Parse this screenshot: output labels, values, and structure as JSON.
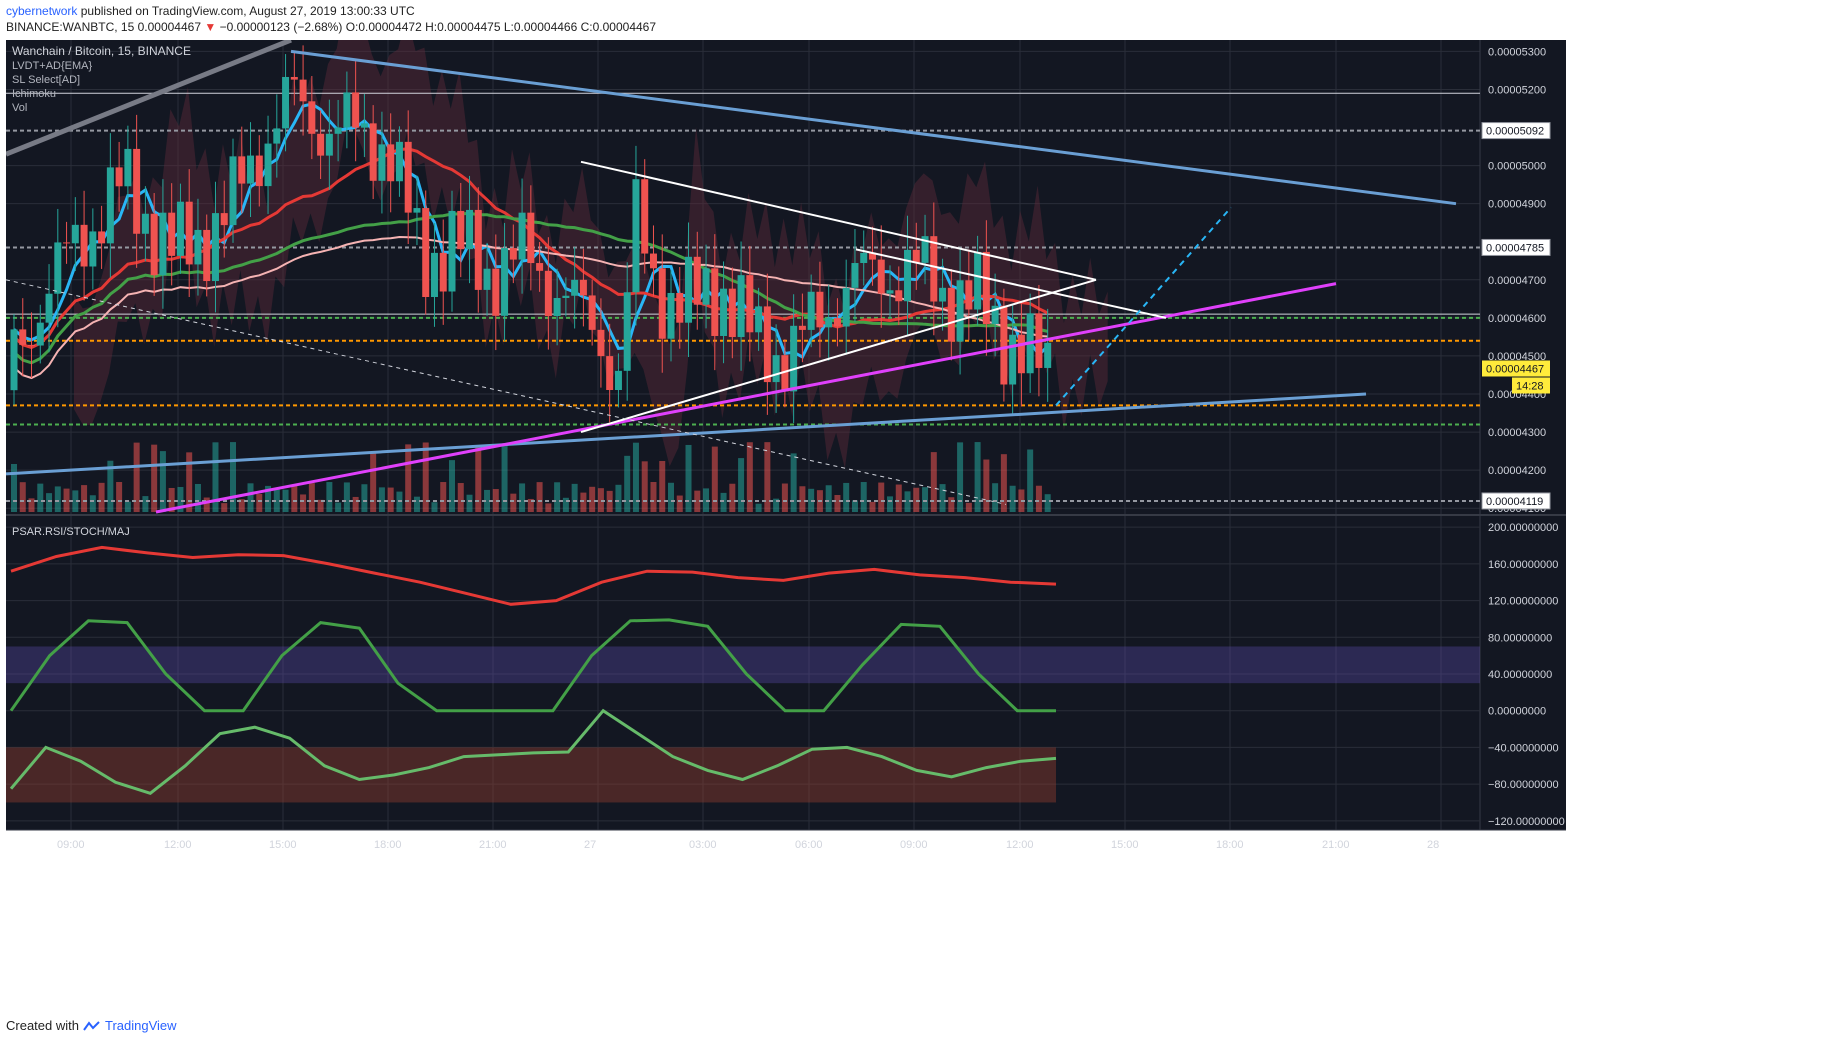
{
  "header": {
    "author": "cybernetwork",
    "published": "published on TradingView.com, August 27, 2019 13:00:33 UTC",
    "symbol_line": "BINANCE:WANBTC, 15",
    "last": "0.00004467",
    "change_arrow": "▼",
    "change": "−0.00000123 (−2.68%)",
    "open": "O:0.00004472",
    "high": "H:0.00004475",
    "low": "L:0.00004466",
    "close": "C:0.00004467"
  },
  "legend": {
    "title": "Wanchain / Bitcoin, 15, BINANCE",
    "indicators": [
      "LVDT+AD{EMA}",
      "SL Select[AD]",
      "Ichimoku",
      "Vol"
    ]
  },
  "subpanel": {
    "title": "PSAR.RSI/STOCH/MAJ"
  },
  "footer": {
    "created_with": "Created with",
    "brand": "TradingView"
  },
  "colors": {
    "background": "#131722",
    "grid": "#2a2e39",
    "up": "#26a69a",
    "down": "#ef5350",
    "price_badge": "#ffeb3b",
    "magenta": "#e040fb",
    "steel_blue": "#6a9fd4",
    "cyan": "#29b6f6"
  },
  "chart_data": [
    {
      "type": "candlestick",
      "title": "Wanchain / Bitcoin, 15, BINANCE",
      "x_ticks": [
        "09:00",
        "12:00",
        "15:00",
        "18:00",
        "21:00",
        "27",
        "03:00",
        "06:00",
        "09:00",
        "12:00",
        "15:00",
        "18:00",
        "21:00",
        "28"
      ],
      "y_ticks": [
        "0.00005300",
        "0.00005200",
        "0.00005000",
        "0.00004900",
        "0.00004700",
        "0.00004600",
        "0.00004500",
        "0.00004400",
        "0.00004300",
        "0.00004200",
        "0.00004100"
      ],
      "ylim": [
        4.09e-05,
        5.33e-05
      ],
      "price_labels": [
        "0.00005092",
        "0.00004785",
        "0.00004467",
        "0.00004119"
      ],
      "countdown": "14:28",
      "current_price": 4.467e-05,
      "close_path": [
        [
          "06:45",
          4.41e-05
        ],
        [
          "09:00",
          4.78e-05
        ],
        [
          "10:30",
          4.95e-05
        ],
        [
          "12:00",
          4.76e-05
        ],
        [
          "13:30",
          4.88e-05
        ],
        [
          "14:30",
          5.07e-05
        ],
        [
          "15:15",
          5.18e-05
        ],
        [
          "16:00",
          5.11e-05
        ],
        [
          "17:00",
          5.09e-05
        ],
        [
          "18:00",
          5.06e-05
        ],
        [
          "19:00",
          4.76e-05
        ],
        [
          "20:00",
          4.79e-05
        ],
        [
          "21:00",
          4.72e-05
        ],
        [
          "22:00",
          4.77e-05
        ],
        [
          "23:00",
          4.66e-05
        ],
        [
          "00:00",
          4.57e-05
        ],
        [
          "00:45",
          4.42e-05
        ],
        [
          "01:00",
          4.89e-05
        ],
        [
          "01:45",
          4.68e-05
        ],
        [
          "02:30",
          4.62e-05
        ],
        [
          "03:30",
          4.69e-05
        ],
        [
          "04:30",
          4.54e-05
        ],
        [
          "05:30",
          4.5e-05
        ],
        [
          "06:30",
          4.62e-05
        ],
        [
          "07:15",
          4.7e-05
        ],
        [
          "08:00",
          4.71e-05
        ],
        [
          "09:00",
          4.73e-05
        ],
        [
          "10:00",
          4.67e-05
        ],
        [
          "11:00",
          4.63e-05
        ],
        [
          "11:45",
          4.55e-05
        ],
        [
          "12:30",
          4.47e-05
        ]
      ]
    },
    {
      "type": "line",
      "title": "PSAR.RSI/STOCH/MAJ",
      "y_ticks": [
        "200.00000000",
        "160.00000000",
        "120.00000000",
        "80.00000000",
        "40.00000000",
        "0.00000000",
        "−40.00000000",
        "−80.00000000",
        "−120.00000000"
      ],
      "ylim": [
        -130,
        210
      ],
      "series": [
        {
          "values": [
            152,
            168,
            178,
            172,
            167,
            170,
            169,
            160,
            150,
            140,
            128,
            116,
            120,
            140,
            152,
            151,
            145,
            142,
            150,
            154,
            148,
            145,
            140,
            138
          ]
        },
        {
          "values": [
            0,
            60,
            98,
            96,
            40,
            0,
            0,
            60,
            96,
            90,
            30,
            0,
            0,
            0,
            0,
            60,
            98,
            99,
            92,
            40,
            0,
            0,
            50,
            94,
            92,
            40,
            0,
            0
          ]
        },
        {
          "values": [
            -85,
            -40,
            -55,
            -78,
            -90,
            -60,
            -25,
            -18,
            -30,
            -60,
            -75,
            -70,
            -62,
            -50,
            -48,
            -46,
            -45,
            0,
            -25,
            -50,
            -65,
            -75,
            -60,
            -42,
            -40,
            -50,
            -65,
            -72,
            -62,
            -55,
            -52
          ]
        }
      ]
    }
  ]
}
